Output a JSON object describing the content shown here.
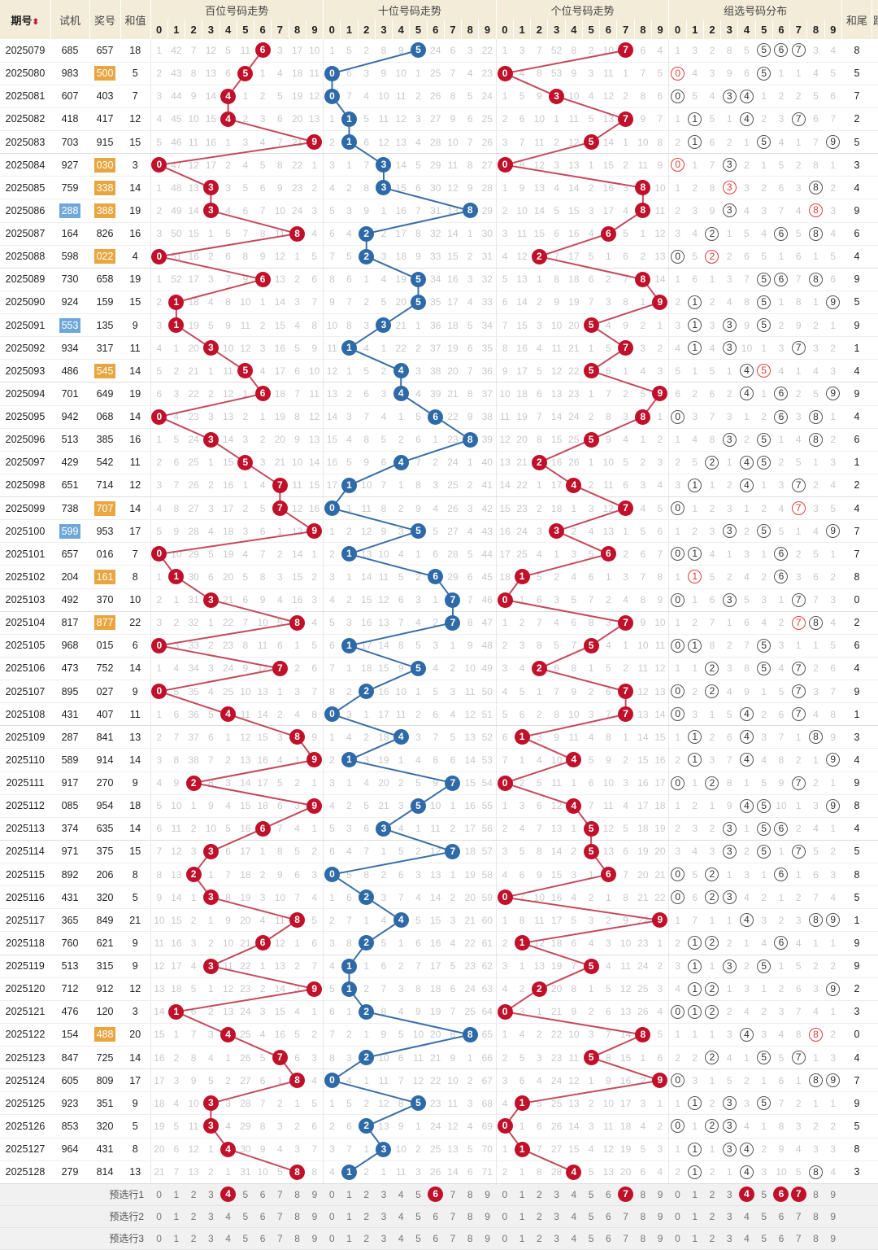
{
  "header": {
    "period": "期号",
    "sort_icon": "sort-icon",
    "trial": "试机",
    "draw": "奖号",
    "sum": "和值",
    "hundreds": "百位号码走势",
    "tens": "十位号码走势",
    "ones": "个位号码走势",
    "group": "组选号码分布",
    "tail": "和尾",
    "extra": "跟",
    "digits": [
      "0",
      "1",
      "2",
      "3",
      "4",
      "5",
      "6",
      "7",
      "8",
      "9"
    ]
  },
  "colors": {
    "hundreds_ball": "#c0102a",
    "tens_ball": "#2e6aa8",
    "ones_ball": "#c0102a",
    "trial_pair": "#6fa8d8",
    "draw_pair": "#e8a540",
    "header_bg": "#f3ecd9"
  },
  "seed_omission": {
    "hundreds": [
      1,
      42,
      7,
      12,
      5,
      11,
      0,
      3,
      17,
      10
    ],
    "tens": [
      1,
      5,
      2,
      8,
      9,
      0,
      24,
      6,
      3,
      22
    ],
    "ones": [
      1,
      3,
      7,
      52,
      8,
      2,
      10,
      0,
      6,
      4
    ],
    "group": [
      1,
      3,
      2,
      8,
      5,
      0,
      0,
      0,
      3,
      4
    ]
  },
  "rows": [
    [
      "2025079",
      "685",
      "657",
      "18"
    ],
    [
      "2025080",
      "983",
      "500",
      "5"
    ],
    [
      "2025081",
      "607",
      "403",
      "7"
    ],
    [
      "2025082",
      "418",
      "417",
      "12"
    ],
    [
      "2025083",
      "703",
      "915",
      "15"
    ],
    [
      "2025084",
      "927",
      "030",
      "3"
    ],
    [
      "2025085",
      "759",
      "338",
      "14"
    ],
    [
      "2025086",
      "288",
      "388",
      "19"
    ],
    [
      "2025087",
      "164",
      "826",
      "16"
    ],
    [
      "2025088",
      "598",
      "022",
      "4"
    ],
    [
      "2025089",
      "730",
      "658",
      "19"
    ],
    [
      "2025090",
      "924",
      "159",
      "15"
    ],
    [
      "2025091",
      "553",
      "135",
      "9"
    ],
    [
      "2025092",
      "934",
      "317",
      "11"
    ],
    [
      "2025093",
      "486",
      "545",
      "14"
    ],
    [
      "2025094",
      "701",
      "649",
      "19"
    ],
    [
      "2025095",
      "942",
      "068",
      "14"
    ],
    [
      "2025096",
      "513",
      "385",
      "16"
    ],
    [
      "2025097",
      "429",
      "542",
      "11"
    ],
    [
      "2025098",
      "651",
      "714",
      "12"
    ],
    [
      "2025099",
      "738",
      "707",
      "14"
    ],
    [
      "2025100",
      "599",
      "953",
      "17"
    ],
    [
      "2025101",
      "657",
      "016",
      "7"
    ],
    [
      "2025102",
      "204",
      "161",
      "8"
    ],
    [
      "2025103",
      "492",
      "370",
      "10"
    ],
    [
      "2025104",
      "817",
      "877",
      "22"
    ],
    [
      "2025105",
      "968",
      "015",
      "6"
    ],
    [
      "2025106",
      "473",
      "752",
      "14"
    ],
    [
      "2025107",
      "895",
      "027",
      "9"
    ],
    [
      "2025108",
      "431",
      "407",
      "11"
    ],
    [
      "2025109",
      "287",
      "841",
      "13"
    ],
    [
      "2025110",
      "589",
      "914",
      "14"
    ],
    [
      "2025111",
      "917",
      "270",
      "9"
    ],
    [
      "2025112",
      "085",
      "954",
      "18"
    ],
    [
      "2025113",
      "374",
      "635",
      "14"
    ],
    [
      "2025114",
      "971",
      "375",
      "15"
    ],
    [
      "2025115",
      "892",
      "206",
      "8"
    ],
    [
      "2025116",
      "431",
      "320",
      "5"
    ],
    [
      "2025117",
      "365",
      "849",
      "21"
    ],
    [
      "2025118",
      "760",
      "621",
      "9"
    ],
    [
      "2025119",
      "513",
      "315",
      "9"
    ],
    [
      "2025120",
      "712",
      "912",
      "12"
    ],
    [
      "2025121",
      "476",
      "120",
      "3"
    ],
    [
      "2025122",
      "154",
      "488",
      "20"
    ],
    [
      "2025123",
      "847",
      "725",
      "14"
    ],
    [
      "2025124",
      "605",
      "809",
      "17"
    ],
    [
      "2025125",
      "923",
      "351",
      "9"
    ],
    [
      "2025126",
      "853",
      "320",
      "5"
    ],
    [
      "2025127",
      "964",
      "431",
      "8"
    ],
    [
      "2025128",
      "279",
      "814",
      "13"
    ]
  ],
  "preselect": [
    {
      "label": "预选行1",
      "hundreds": [
        4
      ],
      "tens": [
        6
      ],
      "ones": [
        7
      ],
      "group": [
        4,
        6,
        7
      ]
    },
    {
      "label": "预选行2",
      "hundreds": [],
      "tens": [],
      "ones": [],
      "group": []
    },
    {
      "label": "预选行3",
      "hundreds": [],
      "tens": [],
      "ones": [],
      "group": []
    }
  ]
}
